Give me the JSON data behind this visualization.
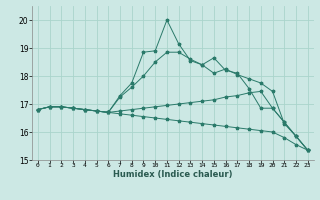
{
  "title": "",
  "xlabel": "Humidex (Indice chaleur)",
  "xlim": [
    -0.5,
    23.5
  ],
  "ylim": [
    15,
    20.5
  ],
  "yticks": [
    15,
    16,
    17,
    18,
    19,
    20
  ],
  "xticks": [
    0,
    1,
    2,
    3,
    4,
    5,
    6,
    7,
    8,
    9,
    10,
    11,
    12,
    13,
    14,
    15,
    16,
    17,
    18,
    19,
    20,
    21,
    22,
    23
  ],
  "background_color": "#cce8e4",
  "grid_color": "#aad4cc",
  "line_color": "#2a7a6a",
  "line1": [
    16.8,
    16.9,
    16.9,
    16.85,
    16.8,
    16.75,
    16.7,
    17.3,
    17.75,
    18.85,
    18.9,
    20.0,
    19.15,
    18.55,
    18.4,
    18.65,
    18.2,
    18.1,
    17.55,
    16.85,
    16.85,
    16.35,
    15.85,
    15.35
  ],
  "line2": [
    16.8,
    16.9,
    16.9,
    16.85,
    16.8,
    16.75,
    16.7,
    17.25,
    17.6,
    18.0,
    18.5,
    18.85,
    18.85,
    18.6,
    18.4,
    18.1,
    18.25,
    18.05,
    17.9,
    17.75,
    17.45,
    16.3,
    15.85,
    15.35
  ],
  "line3": [
    16.8,
    16.9,
    16.9,
    16.85,
    16.8,
    16.75,
    16.7,
    16.75,
    16.8,
    16.85,
    16.9,
    16.95,
    17.0,
    17.05,
    17.1,
    17.15,
    17.25,
    17.3,
    17.4,
    17.45,
    16.85,
    16.35,
    15.85,
    15.35
  ],
  "line4": [
    16.8,
    16.9,
    16.9,
    16.85,
    16.8,
    16.75,
    16.7,
    16.65,
    16.6,
    16.55,
    16.5,
    16.45,
    16.4,
    16.35,
    16.3,
    16.25,
    16.2,
    16.15,
    16.1,
    16.05,
    16.0,
    15.8,
    15.55,
    15.35
  ]
}
